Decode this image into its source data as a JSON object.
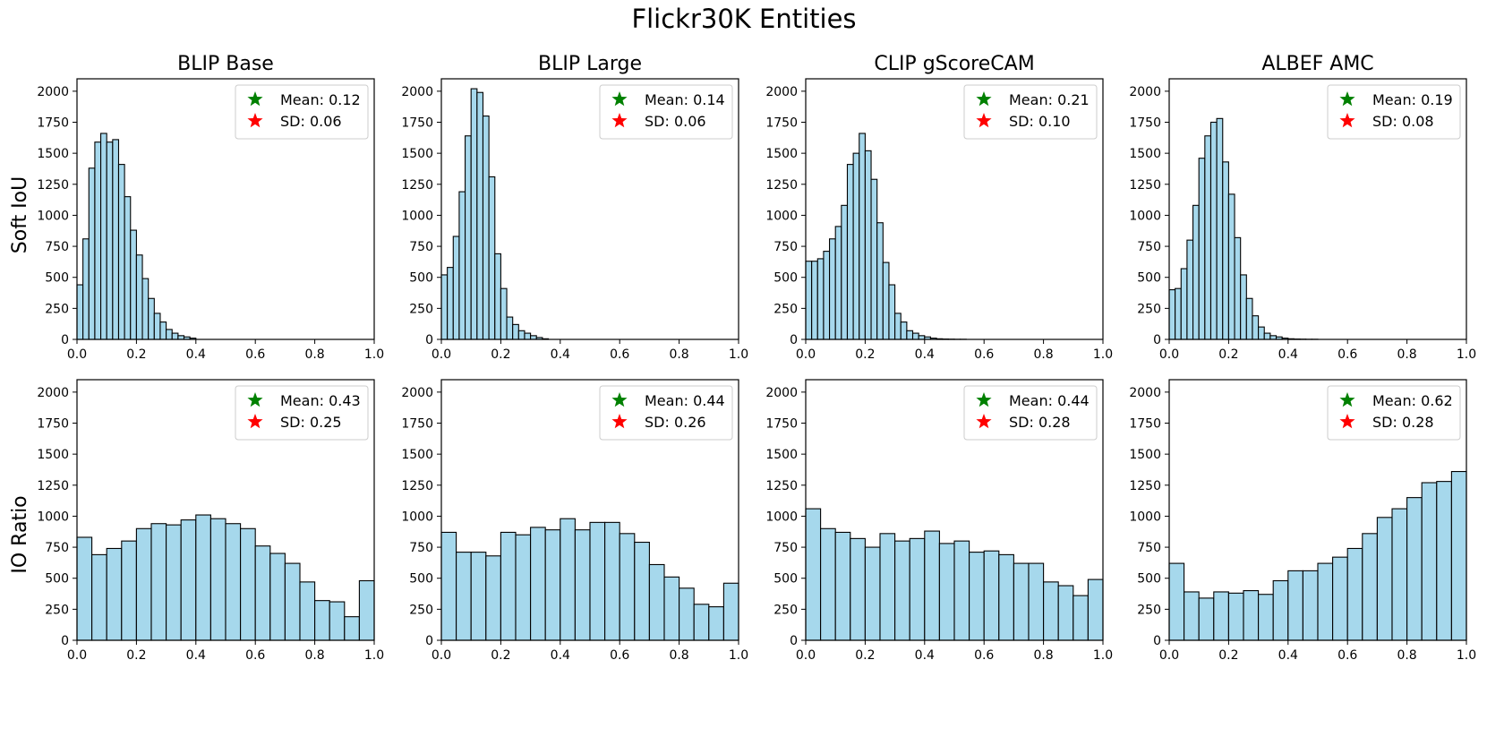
{
  "figure": {
    "title": "Flickr30K Entities",
    "row_labels": [
      "Soft IoU",
      "IO Ratio"
    ],
    "column_titles": [
      "BLIP Base",
      "BLIP Large",
      "CLIP gScoreCAM",
      "ALBEF AMC"
    ],
    "colors": {
      "bar_fill": "#a6d8ec",
      "bar_edge": "#000000",
      "mean_star": "#008000",
      "sd_star": "#ff0000"
    }
  },
  "chart_data": [
    {
      "type": "bar",
      "row": 0,
      "col": 0,
      "title": "BLIP Base",
      "ylabel": "Soft IoU",
      "xlim": [
        0,
        1
      ],
      "ylim": [
        0,
        2100
      ],
      "bin_width": 0.02,
      "xticks": [
        "0.0",
        "0.2",
        "0.4",
        "0.6",
        "0.8",
        "1.0"
      ],
      "yticks": [
        "0",
        "250",
        "500",
        "750",
        "1000",
        "1250",
        "1500",
        "1750",
        "2000"
      ],
      "values": [
        440,
        810,
        1380,
        1590,
        1660,
        1590,
        1610,
        1410,
        1150,
        880,
        680,
        490,
        330,
        210,
        140,
        80,
        50,
        30,
        20,
        10
      ],
      "legend": {
        "mean": "Mean: 0.12",
        "sd": "SD: 0.06"
      }
    },
    {
      "type": "bar",
      "row": 0,
      "col": 1,
      "title": "BLIP Large",
      "ylabel": "Soft IoU",
      "xlim": [
        0,
        1
      ],
      "ylim": [
        0,
        2100
      ],
      "bin_width": 0.02,
      "xticks": [
        "0.0",
        "0.2",
        "0.4",
        "0.6",
        "0.8",
        "1.0"
      ],
      "yticks": [
        "0",
        "250",
        "500",
        "750",
        "1000",
        "1250",
        "1500",
        "1750",
        "2000"
      ],
      "values": [
        520,
        580,
        830,
        1190,
        1640,
        2020,
        1990,
        1800,
        1310,
        690,
        410,
        180,
        120,
        70,
        50,
        30,
        15,
        5
      ],
      "legend": {
        "mean": "Mean: 0.14",
        "sd": "SD: 0.06"
      }
    },
    {
      "type": "bar",
      "row": 0,
      "col": 2,
      "title": "CLIP gScoreCAM",
      "ylabel": "Soft IoU",
      "xlim": [
        0,
        1
      ],
      "ylim": [
        0,
        2100
      ],
      "bin_width": 0.02,
      "xticks": [
        "0.0",
        "0.2",
        "0.4",
        "0.6",
        "0.8",
        "1.0"
      ],
      "yticks": [
        "0",
        "250",
        "500",
        "750",
        "1000",
        "1250",
        "1500",
        "1750",
        "2000"
      ],
      "values": [
        630,
        630,
        650,
        710,
        810,
        910,
        1080,
        1410,
        1500,
        1660,
        1520,
        1290,
        940,
        620,
        440,
        210,
        140,
        70,
        50,
        30,
        20,
        10,
        5,
        3,
        2,
        1,
        1
      ],
      "legend": {
        "mean": "Mean: 0.21",
        "sd": "SD: 0.10"
      }
    },
    {
      "type": "bar",
      "row": 0,
      "col": 3,
      "title": "ALBEF AMC",
      "ylabel": "Soft IoU",
      "xlim": [
        0,
        1
      ],
      "ylim": [
        0,
        2100
      ],
      "bin_width": 0.02,
      "xticks": [
        "0.0",
        "0.2",
        "0.4",
        "0.6",
        "0.8",
        "1.0"
      ],
      "yticks": [
        "0",
        "250",
        "500",
        "750",
        "1000",
        "1250",
        "1500",
        "1750",
        "2000"
      ],
      "values": [
        400,
        410,
        570,
        800,
        1080,
        1460,
        1640,
        1750,
        1780,
        1430,
        1170,
        820,
        520,
        330,
        190,
        100,
        50,
        30,
        20,
        10,
        5,
        3,
        2,
        1,
        1
      ],
      "legend": {
        "mean": "Mean: 0.19",
        "sd": "SD: 0.08"
      }
    },
    {
      "type": "bar",
      "row": 1,
      "col": 0,
      "title": "BLIP Base",
      "ylabel": "IO Ratio",
      "xlim": [
        0,
        1
      ],
      "ylim": [
        0,
        2100
      ],
      "bin_width": 0.05,
      "xticks": [
        "0.0",
        "0.2",
        "0.4",
        "0.6",
        "0.8",
        "1.0"
      ],
      "yticks": [
        "0",
        "250",
        "500",
        "750",
        "1000",
        "1250",
        "1500",
        "1750",
        "2000"
      ],
      "values": [
        830,
        690,
        740,
        800,
        900,
        940,
        930,
        970,
        1010,
        980,
        940,
        900,
        760,
        700,
        620,
        470,
        320,
        310,
        190,
        480
      ],
      "legend": {
        "mean": "Mean: 0.43",
        "sd": "SD: 0.25"
      }
    },
    {
      "type": "bar",
      "row": 1,
      "col": 1,
      "title": "BLIP Large",
      "ylabel": "IO Ratio",
      "xlim": [
        0,
        1
      ],
      "ylim": [
        0,
        2100
      ],
      "bin_width": 0.05,
      "xticks": [
        "0.0",
        "0.2",
        "0.4",
        "0.6",
        "0.8",
        "1.0"
      ],
      "yticks": [
        "0",
        "250",
        "500",
        "750",
        "1000",
        "1250",
        "1500",
        "1750",
        "2000"
      ],
      "values": [
        870,
        710,
        710,
        680,
        870,
        850,
        910,
        890,
        980,
        890,
        950,
        950,
        860,
        790,
        610,
        510,
        420,
        290,
        270,
        460
      ],
      "legend": {
        "mean": "Mean: 0.44",
        "sd": "SD: 0.26"
      }
    },
    {
      "type": "bar",
      "row": 1,
      "col": 2,
      "title": "CLIP gScoreCAM",
      "ylabel": "IO Ratio",
      "xlim": [
        0,
        1
      ],
      "ylim": [
        0,
        2100
      ],
      "bin_width": 0.05,
      "xticks": [
        "0.0",
        "0.2",
        "0.4",
        "0.6",
        "0.8",
        "1.0"
      ],
      "yticks": [
        "0",
        "250",
        "500",
        "750",
        "1000",
        "1250",
        "1500",
        "1750",
        "2000"
      ],
      "values": [
        1060,
        900,
        870,
        820,
        750,
        860,
        800,
        820,
        880,
        780,
        800,
        710,
        720,
        690,
        620,
        620,
        470,
        440,
        360,
        490
      ],
      "legend": {
        "mean": "Mean: 0.44",
        "sd": "SD: 0.28"
      }
    },
    {
      "type": "bar",
      "row": 1,
      "col": 3,
      "title": "ALBEF AMC",
      "ylabel": "IO Ratio",
      "xlim": [
        0,
        1
      ],
      "ylim": [
        0,
        2100
      ],
      "bin_width": 0.05,
      "xticks": [
        "0.0",
        "0.2",
        "0.4",
        "0.6",
        "0.8",
        "1.0"
      ],
      "yticks": [
        "0",
        "250",
        "500",
        "750",
        "1000",
        "1250",
        "1500",
        "1750",
        "2000"
      ],
      "values": [
        620,
        390,
        340,
        390,
        380,
        400,
        370,
        480,
        560,
        560,
        620,
        670,
        740,
        860,
        990,
        1060,
        1150,
        1270,
        1280,
        1360
      ],
      "legend": {
        "mean": "Mean: 0.62",
        "sd": "SD: 0.28"
      }
    }
  ]
}
